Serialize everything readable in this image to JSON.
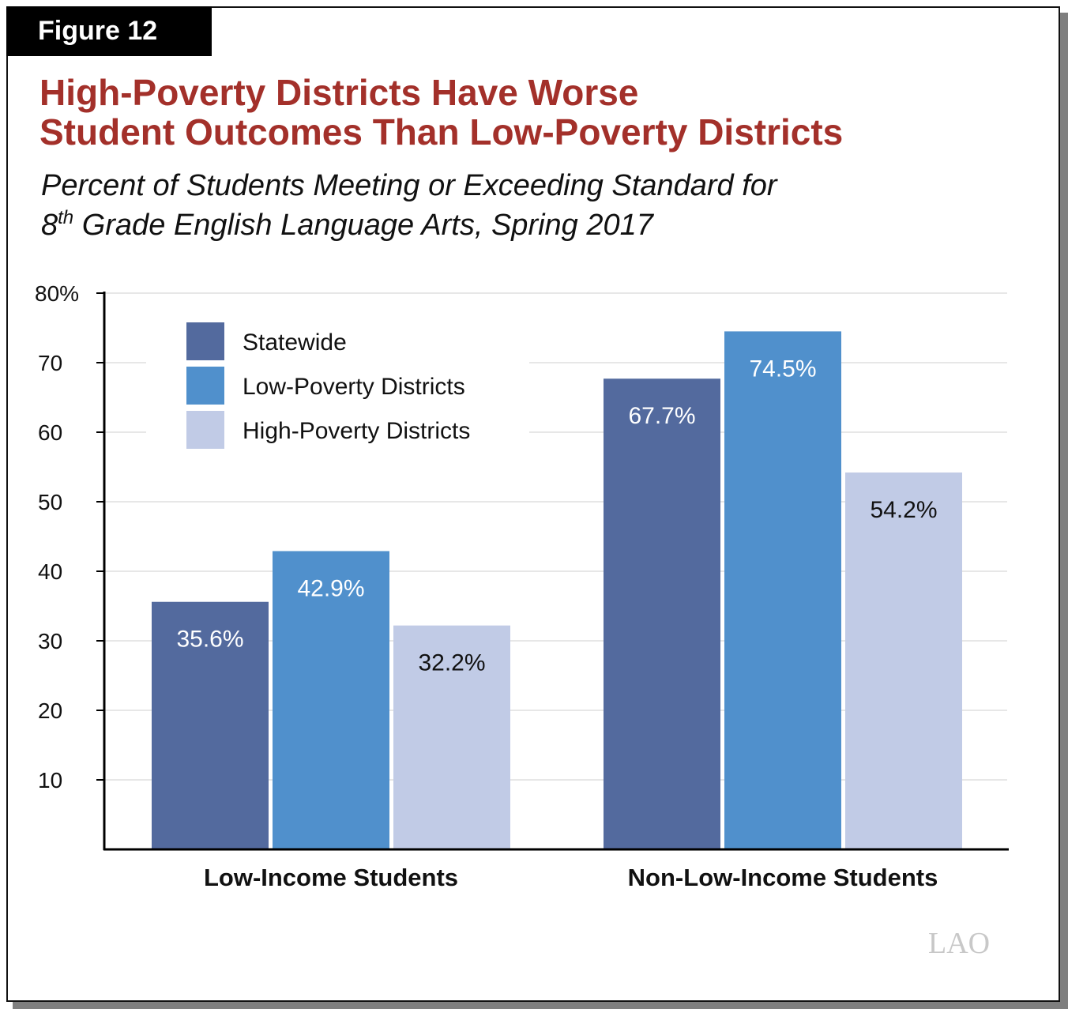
{
  "figure_label": "Figure 12",
  "title_line1": "High-Poverty Districts Have Worse",
  "title_line2": "Student Outcomes Than Low-Poverty Districts",
  "subtitle_line1": "Percent of Students Meeting or Exceeding Standard for",
  "subtitle_line2_pre": "8",
  "subtitle_line2_sup": "th",
  "subtitle_line2_post": " Grade English Language Arts, Spring 2017",
  "logo": "LAO",
  "chart_data": {
    "type": "bar",
    "categories": [
      "Low-Income Students",
      "Non-Low-Income Students"
    ],
    "series": [
      {
        "name": "Statewide",
        "values": [
          35.6,
          67.7
        ],
        "color": "#536a9e",
        "label_color": "#ffffff"
      },
      {
        "name": "Low-Poverty Districts",
        "values": [
          42.9,
          74.5
        ],
        "color": "#5090cc",
        "label_color": "#ffffff"
      },
      {
        "name": "High-Poverty Districts",
        "values": [
          32.2,
          54.2
        ],
        "color": "#c1cbe6",
        "label_color": "#111111"
      }
    ],
    "data_labels": [
      [
        "35.6%",
        "67.7%"
      ],
      [
        "42.9%",
        "74.5%"
      ],
      [
        "32.2%",
        "54.2%"
      ]
    ],
    "ylim": [
      0,
      80
    ],
    "yticks": [
      10,
      20,
      30,
      40,
      50,
      60,
      70,
      80
    ],
    "ytick_labels": [
      "10",
      "20",
      "30",
      "40",
      "50",
      "60",
      "70",
      "80%"
    ],
    "grid": true,
    "legend": "top-left"
  }
}
